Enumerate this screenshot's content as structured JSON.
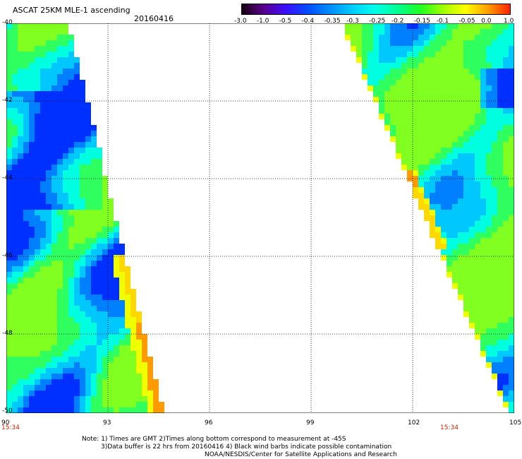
{
  "header": {
    "title": "ASCAT 25KM MLE-1 ascending",
    "date": "20160416"
  },
  "colorbar": {
    "labels": [
      "-3.0",
      "-1.0",
      "-0.5",
      "-0.4",
      "-0.35",
      "-0.3",
      "-0.25",
      "-0.2",
      "-0.15",
      "-0.1",
      "-0.05",
      "0.0",
      "1.0"
    ],
    "colors": [
      "#1a0010",
      "#5a0090",
      "#3a10ff",
      "#0050ff",
      "#0090ff",
      "#00d0ff",
      "#00ffe8",
      "#00ff90",
      "#20ff20",
      "#a0ff00",
      "#ffff00",
      "#ffa000",
      "#ff2000"
    ]
  },
  "map": {
    "lat_labels": [
      "-40",
      "-42",
      "-44",
      "-46",
      "-48",
      "-50"
    ],
    "lon_labels": [
      "90",
      "93",
      "96",
      "99",
      "102",
      "105"
    ],
    "time_labels": [
      "15:34",
      "15:34"
    ]
  },
  "footer": {
    "line1": "Note: 1) Times are GMT 2)Times along bottom correspond to measurement at -45S",
    "line2": "3)Data buffer is 22 hrs from 20160416 4) Black wind barbs indicate possible contamination",
    "line3": "NOAA/NESDIS/Center for Satellite Applications and Research"
  }
}
